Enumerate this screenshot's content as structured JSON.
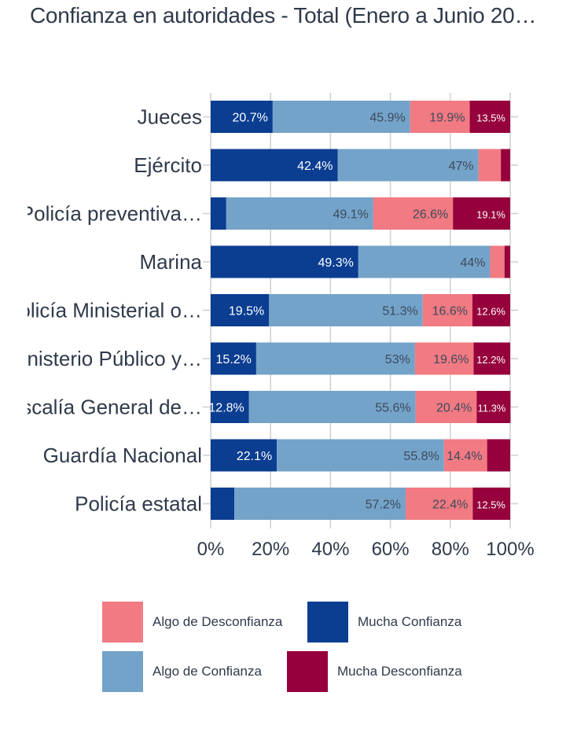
{
  "chart_data": {
    "type": "bar",
    "orientation": "horizontal",
    "stacked": true,
    "title": "Confianza en autoridades - Total (Enero a Junio 20…",
    "categories": [
      "Jueces",
      "Ejército",
      "Policía preventiva…",
      "Marina",
      "Policía Ministerial o…",
      "Ministerio Público y…",
      "Fiscalía General de…",
      "Guardía Nacional",
      "Policía estatal"
    ],
    "series": [
      {
        "name": "Mucha Confianza",
        "color": "#0b3d91",
        "values": [
          20.7,
          42.4,
          5.2,
          49.3,
          19.5,
          15.2,
          12.8,
          22.1,
          7.9
        ],
        "labels": [
          "20.7%",
          "42.4%",
          "",
          "49.3%",
          "19.5%",
          "15.2%",
          "12.8%",
          "22.1%",
          ""
        ]
      },
      {
        "name": "Algo de Confianza",
        "color": "#74a3c9",
        "values": [
          45.9,
          47.0,
          49.1,
          44.0,
          51.3,
          53.0,
          55.6,
          55.8,
          57.2
        ],
        "labels": [
          "45.9%",
          "47%",
          "49.1%",
          "44%",
          "51.3%",
          "53%",
          "55.6%",
          "55.8%",
          "57.2%"
        ]
      },
      {
        "name": "Algo de Desconfianza",
        "color": "#f27a82",
        "values": [
          19.9,
          7.5,
          26.6,
          4.8,
          16.6,
          19.6,
          20.4,
          14.4,
          22.4
        ],
        "labels": [
          "19.9%",
          "",
          "26.6%",
          "",
          "16.6%",
          "19.6%",
          "20.4%",
          "14.4%",
          "22.4%"
        ]
      },
      {
        "name": "Mucha Desconfianza",
        "color": "#96003c",
        "values": [
          13.5,
          3.1,
          19.1,
          1.9,
          12.6,
          12.2,
          11.3,
          7.7,
          12.5
        ],
        "labels": [
          "13.5%",
          "",
          "19.1%",
          "",
          "12.6%",
          "12.2%",
          "11.3%",
          "",
          "12.5%"
        ]
      }
    ],
    "xlim": [
      0,
      100
    ],
    "xticks": [
      "0%",
      "20%",
      "40%",
      "60%",
      "80%",
      "100%"
    ],
    "grid": true,
    "legend_position": "bottom",
    "legend": {
      "items": [
        {
          "label": "Algo de Desconfianza",
          "color": "#f27a82"
        },
        {
          "label": "Mucha Confianza",
          "color": "#0b3d91"
        },
        {
          "label": "Algo de Confianza",
          "color": "#74a3c9"
        },
        {
          "label": "Mucha Desconfianza",
          "color": "#96003c"
        }
      ]
    }
  }
}
